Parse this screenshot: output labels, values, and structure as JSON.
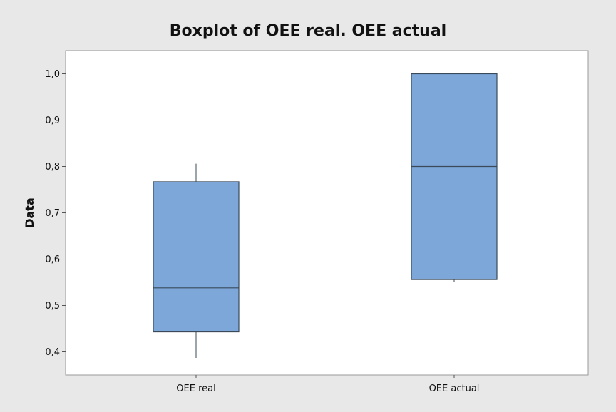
{
  "chart_data": {
    "type": "boxplot",
    "title": "Boxplot of OEE real. OEE actual",
    "xlabel": "",
    "ylabel": "Data",
    "ylim": [
      0.35,
      1.05
    ],
    "yticks": [
      0.4,
      0.5,
      0.6,
      0.7,
      0.8,
      0.9,
      1.0
    ],
    "ytick_labels": [
      "0,4",
      "0,5",
      "0,6",
      "0,7",
      "0,8",
      "0,9",
      "1,0"
    ],
    "categories": [
      "OEE real",
      "OEE actual"
    ],
    "series": [
      {
        "category": "OEE real",
        "whisker_low": 0.387,
        "q1": 0.443,
        "median": 0.538,
        "q3": 0.767,
        "whisker_high": 0.806
      },
      {
        "category": "OEE actual",
        "whisker_low": 0.55,
        "q1": 0.556,
        "median": 0.8,
        "q3": 1.0,
        "whisker_high": 1.0
      }
    ],
    "grid": false,
    "legend": "none",
    "colors": {
      "outer_background": "#e8e8e8",
      "plot_background": "#ffffff",
      "box_fill": "#7da7d9",
      "box_stroke": "#3a4a5a",
      "axis": "#555555"
    }
  }
}
